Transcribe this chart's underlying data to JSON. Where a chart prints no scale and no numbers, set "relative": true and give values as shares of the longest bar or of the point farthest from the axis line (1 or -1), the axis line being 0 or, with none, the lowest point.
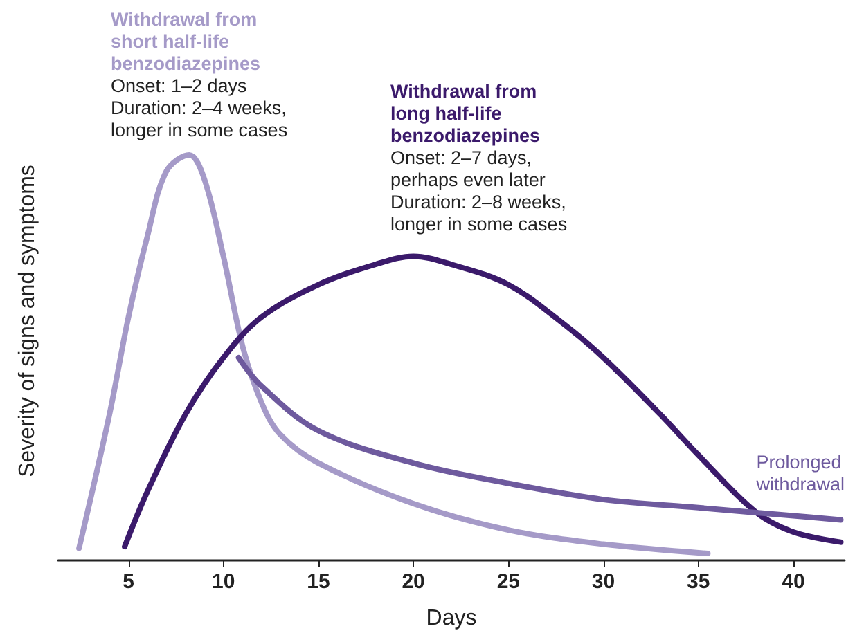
{
  "chart_data": {
    "type": "line",
    "relative": true,
    "xlabel": "Days",
    "ylabel": "Severity of signs and symptoms",
    "xlim": [
      1.3,
      42.7
    ],
    "xticks": [
      5,
      10,
      15,
      20,
      25,
      30,
      35,
      40
    ],
    "grid": false,
    "legend": false,
    "marker": "none",
    "line_style": "solid",
    "series": [
      {
        "name": "Withdrawal from\nshort half-life\nbenzodiazepines",
        "color": "#a59ac8",
        "x": [
          2.4,
          4,
          5,
          6,
          7,
          8.2,
          9,
          10,
          11,
          12,
          13,
          15,
          20,
          25,
          30,
          35.5
        ],
        "values": [
          0.03,
          0.36,
          0.6,
          0.8,
          0.96,
          1,
          0.94,
          0.75,
          0.53,
          0.39,
          0.31,
          0.24,
          0.14,
          0.075,
          0.04,
          0.017
        ]
      },
      {
        "name": "Withdrawal from\nlong half-life\nbenzodiazepines",
        "color": "#3b1a6b",
        "x": [
          4.8,
          6,
          8,
          10,
          12,
          15,
          18,
          20,
          22,
          25,
          28,
          30,
          33,
          35,
          38,
          40,
          42.5
        ],
        "values": [
          0.034,
          0.17,
          0.36,
          0.5,
          0.6,
          0.68,
          0.73,
          0.75,
          0.73,
          0.68,
          0.58,
          0.5,
          0.36,
          0.26,
          0.12,
          0.07,
          0.045
        ]
      },
      {
        "name": "Prolonged\nwithdrawal",
        "color": "#6e5a9e",
        "x": [
          10.8,
          12,
          15,
          20,
          25,
          30,
          35,
          40,
          42.5
        ],
        "values": [
          0.5,
          0.43,
          0.32,
          0.24,
          0.19,
          0.15,
          0.13,
          0.11,
          0.1
        ]
      }
    ],
    "annotations": [
      "Onset: 1–2 days\nDuration: 2–4 weeks,\nlonger in some cases",
      "Onset: 2–7 days,\nperhaps even later\nDuration: 2–8 weeks,\nlonger in some cases"
    ]
  }
}
